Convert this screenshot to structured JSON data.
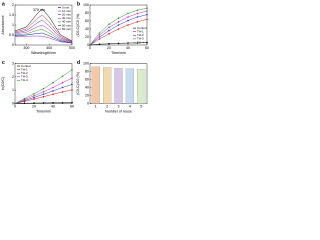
{
  "chart_data": [
    {
      "type": "line",
      "panel": "a",
      "xlabel": "Wavelength/nm",
      "ylabel": "Absorbance",
      "annotation": "370 nm",
      "x": [
        250,
        300,
        350,
        370,
        400,
        450,
        500
      ],
      "xlim": [
        250,
        500
      ],
      "xticks": [
        300,
        400,
        500
      ],
      "ylim": [
        0,
        2
      ],
      "yticks": [
        0,
        0.5,
        1,
        1.5,
        2
      ],
      "legend": "upper right",
      "markers": false,
      "series": [
        {
          "name": "0 min",
          "color": "#000000",
          "values": [
            0.7,
            0.9,
            1.6,
            1.8,
            1.4,
            0.5,
            0.2
          ]
        },
        {
          "name": "10 min",
          "color": "#e41a1c",
          "values": [
            0.65,
            0.8,
            1.35,
            1.5,
            1.15,
            0.42,
            0.17
          ]
        },
        {
          "name": "20 min",
          "color": "#1f3fd0",
          "values": [
            0.6,
            0.72,
            1.12,
            1.25,
            0.95,
            0.35,
            0.15
          ]
        },
        {
          "name": "30 min",
          "color": "#d61fd6",
          "values": [
            0.55,
            0.64,
            0.92,
            1.0,
            0.76,
            0.29,
            0.13
          ]
        },
        {
          "name": "40 min",
          "color": "#2ca02c",
          "values": [
            0.5,
            0.56,
            0.74,
            0.78,
            0.6,
            0.24,
            0.11
          ]
        },
        {
          "name": "50 min",
          "color": "#0b1f7a",
          "values": [
            0.46,
            0.5,
            0.58,
            0.6,
            0.46,
            0.2,
            0.1
          ]
        },
        {
          "name": "60 min",
          "color": "#8a2be2",
          "values": [
            0.42,
            0.44,
            0.45,
            0.44,
            0.35,
            0.16,
            0.09
          ]
        }
      ]
    },
    {
      "type": "line",
      "panel": "b",
      "xlabel": "Time/min",
      "ylabel": "(C0-C)/C0 (%)",
      "x": [
        0,
        10,
        20,
        30,
        40,
        50,
        60
      ],
      "xlim": [
        0,
        60
      ],
      "xticks": [
        0,
        20,
        40,
        60
      ],
      "ylim": [
        0,
        100
      ],
      "yticks": [
        0,
        20,
        40,
        60,
        80,
        100
      ],
      "legend": "lower right",
      "markers": true,
      "series": [
        {
          "name": "Control",
          "color": "#000000",
          "values": [
            0,
            2,
            3,
            4,
            5,
            5,
            6
          ]
        },
        {
          "name": "TH-1",
          "color": "#e41a1c",
          "values": [
            0,
            15,
            28,
            40,
            50,
            58,
            64
          ]
        },
        {
          "name": "TH-2",
          "color": "#1f3fd0",
          "values": [
            0,
            20,
            36,
            50,
            61,
            70,
            76
          ]
        },
        {
          "name": "TH-3",
          "color": "#d61fd6",
          "values": [
            0,
            25,
            44,
            58,
            70,
            79,
            85
          ]
        },
        {
          "name": "TH-4",
          "color": "#2ca02c",
          "values": [
            0,
            30,
            52,
            67,
            79,
            87,
            92
          ]
        }
      ]
    },
    {
      "type": "line",
      "panel": "c",
      "xlabel": "Time/min",
      "ylabel": "ln(C0/C)",
      "x": [
        0,
        10,
        20,
        30,
        40,
        50,
        60
      ],
      "xlim": [
        0,
        60
      ],
      "xticks": [
        0,
        20,
        40,
        60
      ],
      "ylim": [
        0,
        3
      ],
      "yticks": [
        0,
        1,
        2,
        3
      ],
      "legend": "upper left",
      "markers": true,
      "series": [
        {
          "name": "Control",
          "color": "#000000",
          "values": [
            0,
            0.02,
            0.03,
            0.04,
            0.05,
            0.05,
            0.06
          ]
        },
        {
          "name": "TH-1",
          "color": "#e41a1c",
          "values": [
            0,
            0.16,
            0.33,
            0.51,
            0.69,
            0.87,
            1.02
          ]
        },
        {
          "name": "TH-2",
          "color": "#1f3fd0",
          "values": [
            0,
            0.22,
            0.45,
            0.69,
            0.94,
            1.2,
            1.43
          ]
        },
        {
          "name": "TH-3",
          "color": "#d61fd6",
          "values": [
            0,
            0.29,
            0.58,
            0.87,
            1.2,
            1.56,
            1.9
          ]
        },
        {
          "name": "TH-4",
          "color": "#2ca02c",
          "values": [
            0,
            0.36,
            0.73,
            1.11,
            1.56,
            2.04,
            2.53
          ]
        }
      ]
    },
    {
      "type": "bar",
      "panel": "d",
      "xlabel": "Number of reuse",
      "ylabel": "(C0-C)/C0 (%)",
      "categories": [
        "1",
        "2",
        "3",
        "4",
        "5"
      ],
      "values": [
        92,
        90,
        88,
        87,
        86
      ],
      "colors": [
        "#f4c9a8",
        "#f3d9b0",
        "#d8c8e8",
        "#c9dcef",
        "#d9ecc9"
      ],
      "ylim": [
        0,
        100
      ],
      "yticks": [
        0,
        20,
        40,
        60,
        80,
        100
      ]
    }
  ]
}
